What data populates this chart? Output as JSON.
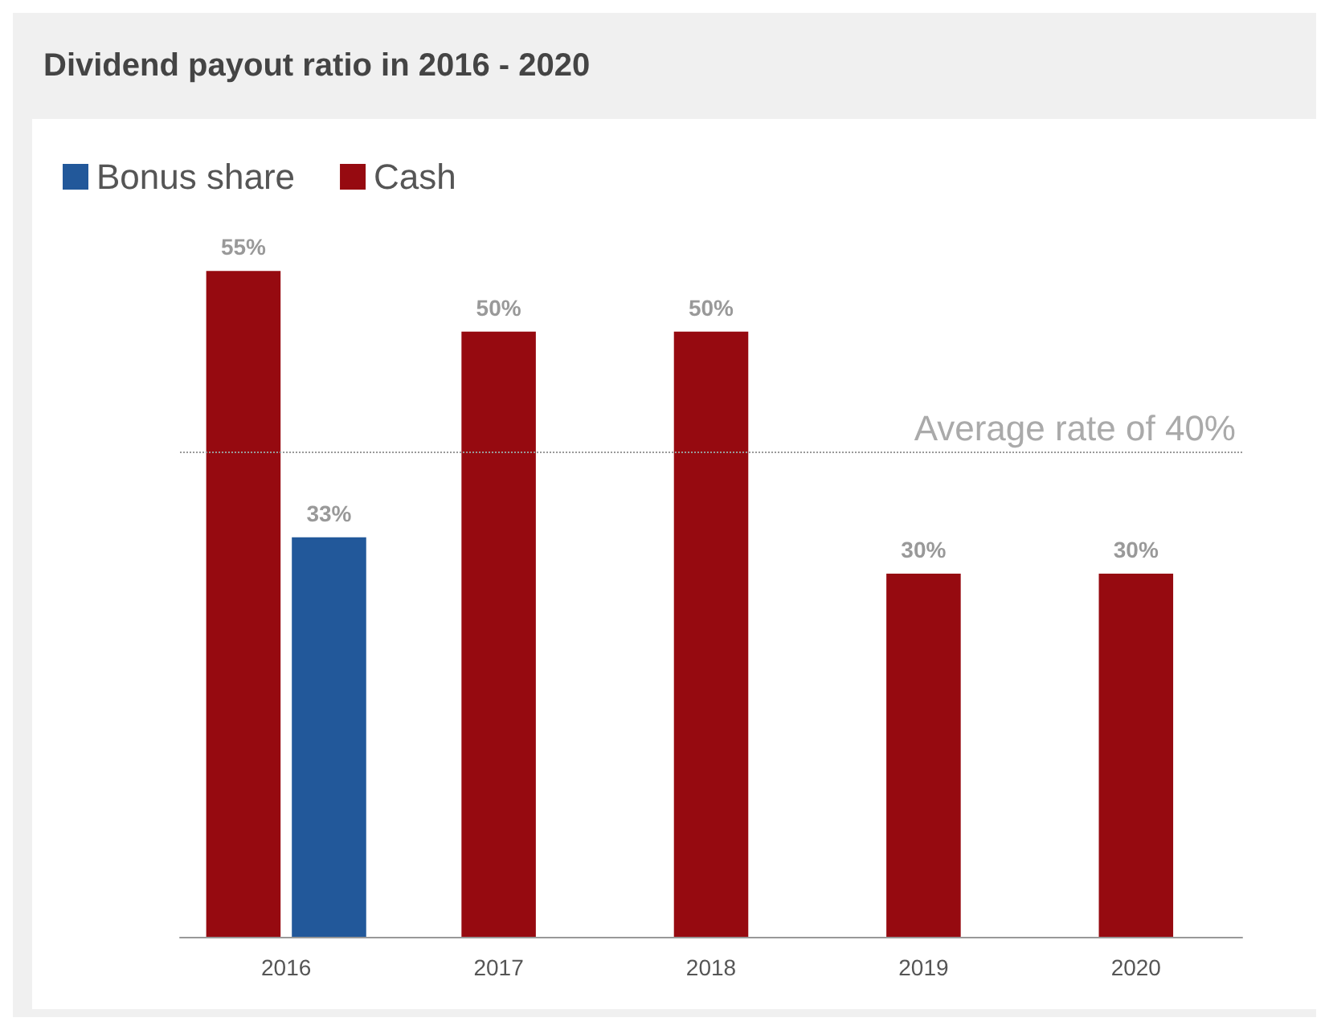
{
  "chart_data": {
    "type": "bar",
    "title": "Dividend payout ratio in 2016 - 2020",
    "categories": [
      "2016",
      "2017",
      "2018",
      "2019",
      "2020"
    ],
    "series": [
      {
        "name": "Cash",
        "color": "#960a10",
        "values": [
          55,
          50,
          50,
          30,
          30
        ],
        "value_labels": [
          "55%",
          "50%",
          "50%",
          "30%",
          "30%"
        ]
      },
      {
        "name": "Bonus share",
        "color": "#22589a",
        "values": [
          33,
          null,
          null,
          null,
          null
        ],
        "value_labels": [
          "33%",
          null,
          null,
          null,
          null
        ]
      }
    ],
    "ref_lines": [
      {
        "axis": "y",
        "value": 40,
        "label": "Average rate of 40%",
        "color": "#999999",
        "line_style": "dotted"
      }
    ],
    "legend": "top left"
  }
}
